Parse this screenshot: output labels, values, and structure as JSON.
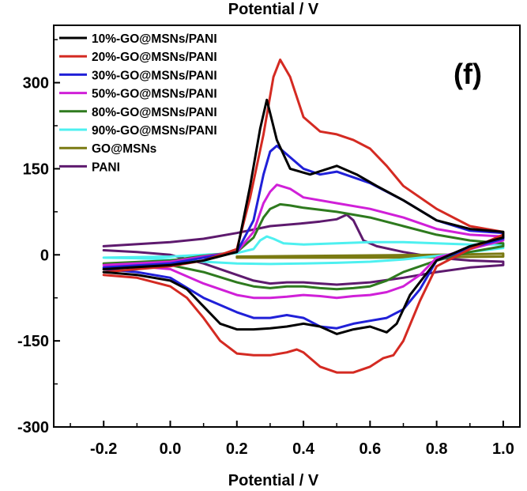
{
  "chart_data": {
    "type": "line",
    "top_title": "Potential / V",
    "xlabel": "Potential / V",
    "ylabel": "",
    "panel_label": "(f)",
    "xlim": [
      -0.35,
      1.05
    ],
    "ylim": [
      -300,
      400
    ],
    "xticks": [
      -0.2,
      0.0,
      0.2,
      0.4,
      0.6,
      0.8,
      1.0
    ],
    "xtick_labels": [
      "-0.2",
      "0.0",
      "0.2",
      "0.4",
      "0.6",
      "0.8",
      "1.0"
    ],
    "yticks": [
      -300,
      -150,
      0,
      150,
      300
    ],
    "ytick_labels": [
      "-300",
      "-150",
      "0",
      "150",
      "300"
    ],
    "grid": false,
    "legend_position": "top-left",
    "series": [
      {
        "name": "10%-GO@MSNs/PANI",
        "color": "#000000",
        "x": [
          -0.2,
          0.0,
          0.1,
          0.2,
          0.24,
          0.27,
          0.29,
          0.32,
          0.36,
          0.42,
          0.5,
          0.56,
          0.62,
          0.7,
          0.8,
          0.9,
          1.0,
          1.0,
          0.9,
          0.8,
          0.72,
          0.68,
          0.65,
          0.6,
          0.55,
          0.5,
          0.45,
          0.4,
          0.35,
          0.3,
          0.25,
          0.2,
          0.15,
          0.1,
          0.05,
          0.0,
          -0.1,
          -0.2
        ],
        "y": [
          -25,
          -18,
          -10,
          5,
          120,
          220,
          270,
          200,
          150,
          140,
          155,
          140,
          120,
          95,
          60,
          45,
          40,
          30,
          15,
          -10,
          -70,
          -120,
          -135,
          -125,
          -130,
          -138,
          -125,
          -120,
          -125,
          -128,
          -130,
          -130,
          -120,
          -90,
          -60,
          -45,
          -35,
          -30
        ]
      },
      {
        "name": "20%-GO@MSNs/PANI",
        "color": "#d42a22",
        "x": [
          -0.2,
          0.0,
          0.1,
          0.2,
          0.24,
          0.28,
          0.31,
          0.33,
          0.36,
          0.4,
          0.45,
          0.5,
          0.55,
          0.6,
          0.65,
          0.7,
          0.8,
          0.9,
          1.0,
          1.0,
          0.9,
          0.8,
          0.75,
          0.7,
          0.67,
          0.64,
          0.6,
          0.55,
          0.5,
          0.45,
          0.4,
          0.38,
          0.35,
          0.3,
          0.25,
          0.2,
          0.15,
          0.1,
          0.05,
          0.0,
          -0.1,
          -0.2
        ],
        "y": [
          -30,
          -20,
          -10,
          10,
          100,
          210,
          310,
          340,
          310,
          240,
          215,
          210,
          200,
          185,
          155,
          120,
          80,
          50,
          40,
          35,
          10,
          -20,
          -80,
          -150,
          -175,
          -180,
          -195,
          -205,
          -205,
          -195,
          -170,
          -165,
          -170,
          -175,
          -175,
          -172,
          -150,
          -110,
          -75,
          -55,
          -40,
          -35
        ]
      },
      {
        "name": "30%-GO@MSNs/PANI",
        "color": "#2020d8",
        "x": [
          -0.2,
          0.0,
          0.1,
          0.2,
          0.25,
          0.28,
          0.3,
          0.32,
          0.35,
          0.4,
          0.45,
          0.5,
          0.6,
          0.7,
          0.8,
          0.9,
          1.0,
          1.0,
          0.9,
          0.8,
          0.75,
          0.7,
          0.65,
          0.6,
          0.55,
          0.5,
          0.45,
          0.4,
          0.35,
          0.3,
          0.25,
          0.2,
          0.1,
          0.0,
          -0.1,
          -0.2
        ],
        "y": [
          -22,
          -15,
          -5,
          5,
          60,
          140,
          180,
          190,
          175,
          150,
          140,
          145,
          125,
          95,
          60,
          42,
          38,
          28,
          12,
          -10,
          -60,
          -95,
          -110,
          -115,
          -120,
          -128,
          -125,
          -110,
          -105,
          -110,
          -110,
          -100,
          -75,
          -40,
          -30,
          -25
        ]
      },
      {
        "name": "50%-GO@MSNs/PANI",
        "color": "#d020d8",
        "x": [
          -0.2,
          0.0,
          0.1,
          0.2,
          0.25,
          0.28,
          0.3,
          0.32,
          0.36,
          0.4,
          0.5,
          0.6,
          0.7,
          0.8,
          0.9,
          1.0,
          1.0,
          0.9,
          0.8,
          0.75,
          0.7,
          0.65,
          0.6,
          0.55,
          0.5,
          0.45,
          0.4,
          0.35,
          0.3,
          0.25,
          0.2,
          0.1,
          0.0,
          -0.1,
          -0.2
        ],
        "y": [
          -18,
          -12,
          -3,
          5,
          40,
          90,
          110,
          122,
          115,
          100,
          90,
          80,
          65,
          45,
          35,
          32,
          25,
          10,
          -5,
          -35,
          -55,
          -65,
          -70,
          -72,
          -75,
          -72,
          -70,
          -73,
          -75,
          -75,
          -70,
          -50,
          -25,
          -20,
          -18
        ]
      },
      {
        "name": "80%-GO@MSNs/PANI",
        "color": "#2e7a1e",
        "x": [
          -0.2,
          0.0,
          0.1,
          0.2,
          0.25,
          0.28,
          0.3,
          0.33,
          0.36,
          0.4,
          0.5,
          0.6,
          0.7,
          0.8,
          0.9,
          1.0,
          1.0,
          0.9,
          0.8,
          0.7,
          0.65,
          0.6,
          0.55,
          0.5,
          0.45,
          0.4,
          0.35,
          0.3,
          0.25,
          0.2,
          0.1,
          0.0,
          -0.1,
          -0.2
        ],
        "y": [
          -15,
          -10,
          -2,
          5,
          30,
          65,
          80,
          88,
          86,
          82,
          75,
          65,
          50,
          35,
          25,
          20,
          15,
          5,
          -10,
          -30,
          -45,
          -55,
          -58,
          -60,
          -58,
          -55,
          -55,
          -58,
          -55,
          -48,
          -30,
          -18,
          -15,
          -15
        ]
      },
      {
        "name": "90%-GO@MSNs/PANI",
        "color": "#4ef0f0",
        "x": [
          -0.2,
          0.0,
          0.1,
          0.2,
          0.25,
          0.27,
          0.29,
          0.31,
          0.34,
          0.4,
          0.5,
          0.6,
          0.7,
          0.8,
          0.9,
          1.0,
          1.0,
          0.9,
          0.8,
          0.7,
          0.6,
          0.5,
          0.4,
          0.3,
          0.2,
          0.1,
          0.0,
          -0.1,
          -0.2
        ],
        "y": [
          -5,
          -3,
          0,
          3,
          10,
          25,
          32,
          28,
          20,
          18,
          20,
          22,
          22,
          20,
          18,
          18,
          12,
          5,
          -2,
          -8,
          -12,
          -14,
          -15,
          -16,
          -15,
          -12,
          -8,
          -6,
          -5
        ]
      },
      {
        "name": "GO@MSNs",
        "color": "#7a7a12",
        "x": [
          0.2,
          0.4,
          0.6,
          0.8,
          1.0,
          1.0,
          0.8,
          0.6,
          0.4,
          0.2
        ],
        "y": [
          -3,
          -2,
          -1,
          0,
          2,
          -3,
          -4,
          -5,
          -5,
          -5
        ]
      },
      {
        "name": "PANI",
        "color": "#5e1a6e",
        "x": [
          -0.2,
          0.0,
          0.1,
          0.2,
          0.3,
          0.4,
          0.45,
          0.5,
          0.53,
          0.55,
          0.58,
          0.62,
          0.7,
          0.8,
          0.9,
          1.0,
          1.0,
          0.9,
          0.8,
          0.7,
          0.6,
          0.5,
          0.45,
          0.4,
          0.35,
          0.3,
          0.25,
          0.2,
          0.15,
          0.1,
          0.0,
          -0.1,
          -0.2
        ],
        "y": [
          15,
          22,
          28,
          38,
          50,
          55,
          58,
          62,
          70,
          60,
          25,
          15,
          5,
          -5,
          -10,
          -12,
          -18,
          -22,
          -30,
          -40,
          -48,
          -52,
          -50,
          -48,
          -48,
          -50,
          -45,
          -35,
          -25,
          -15,
          0,
          5,
          8
        ]
      }
    ]
  }
}
